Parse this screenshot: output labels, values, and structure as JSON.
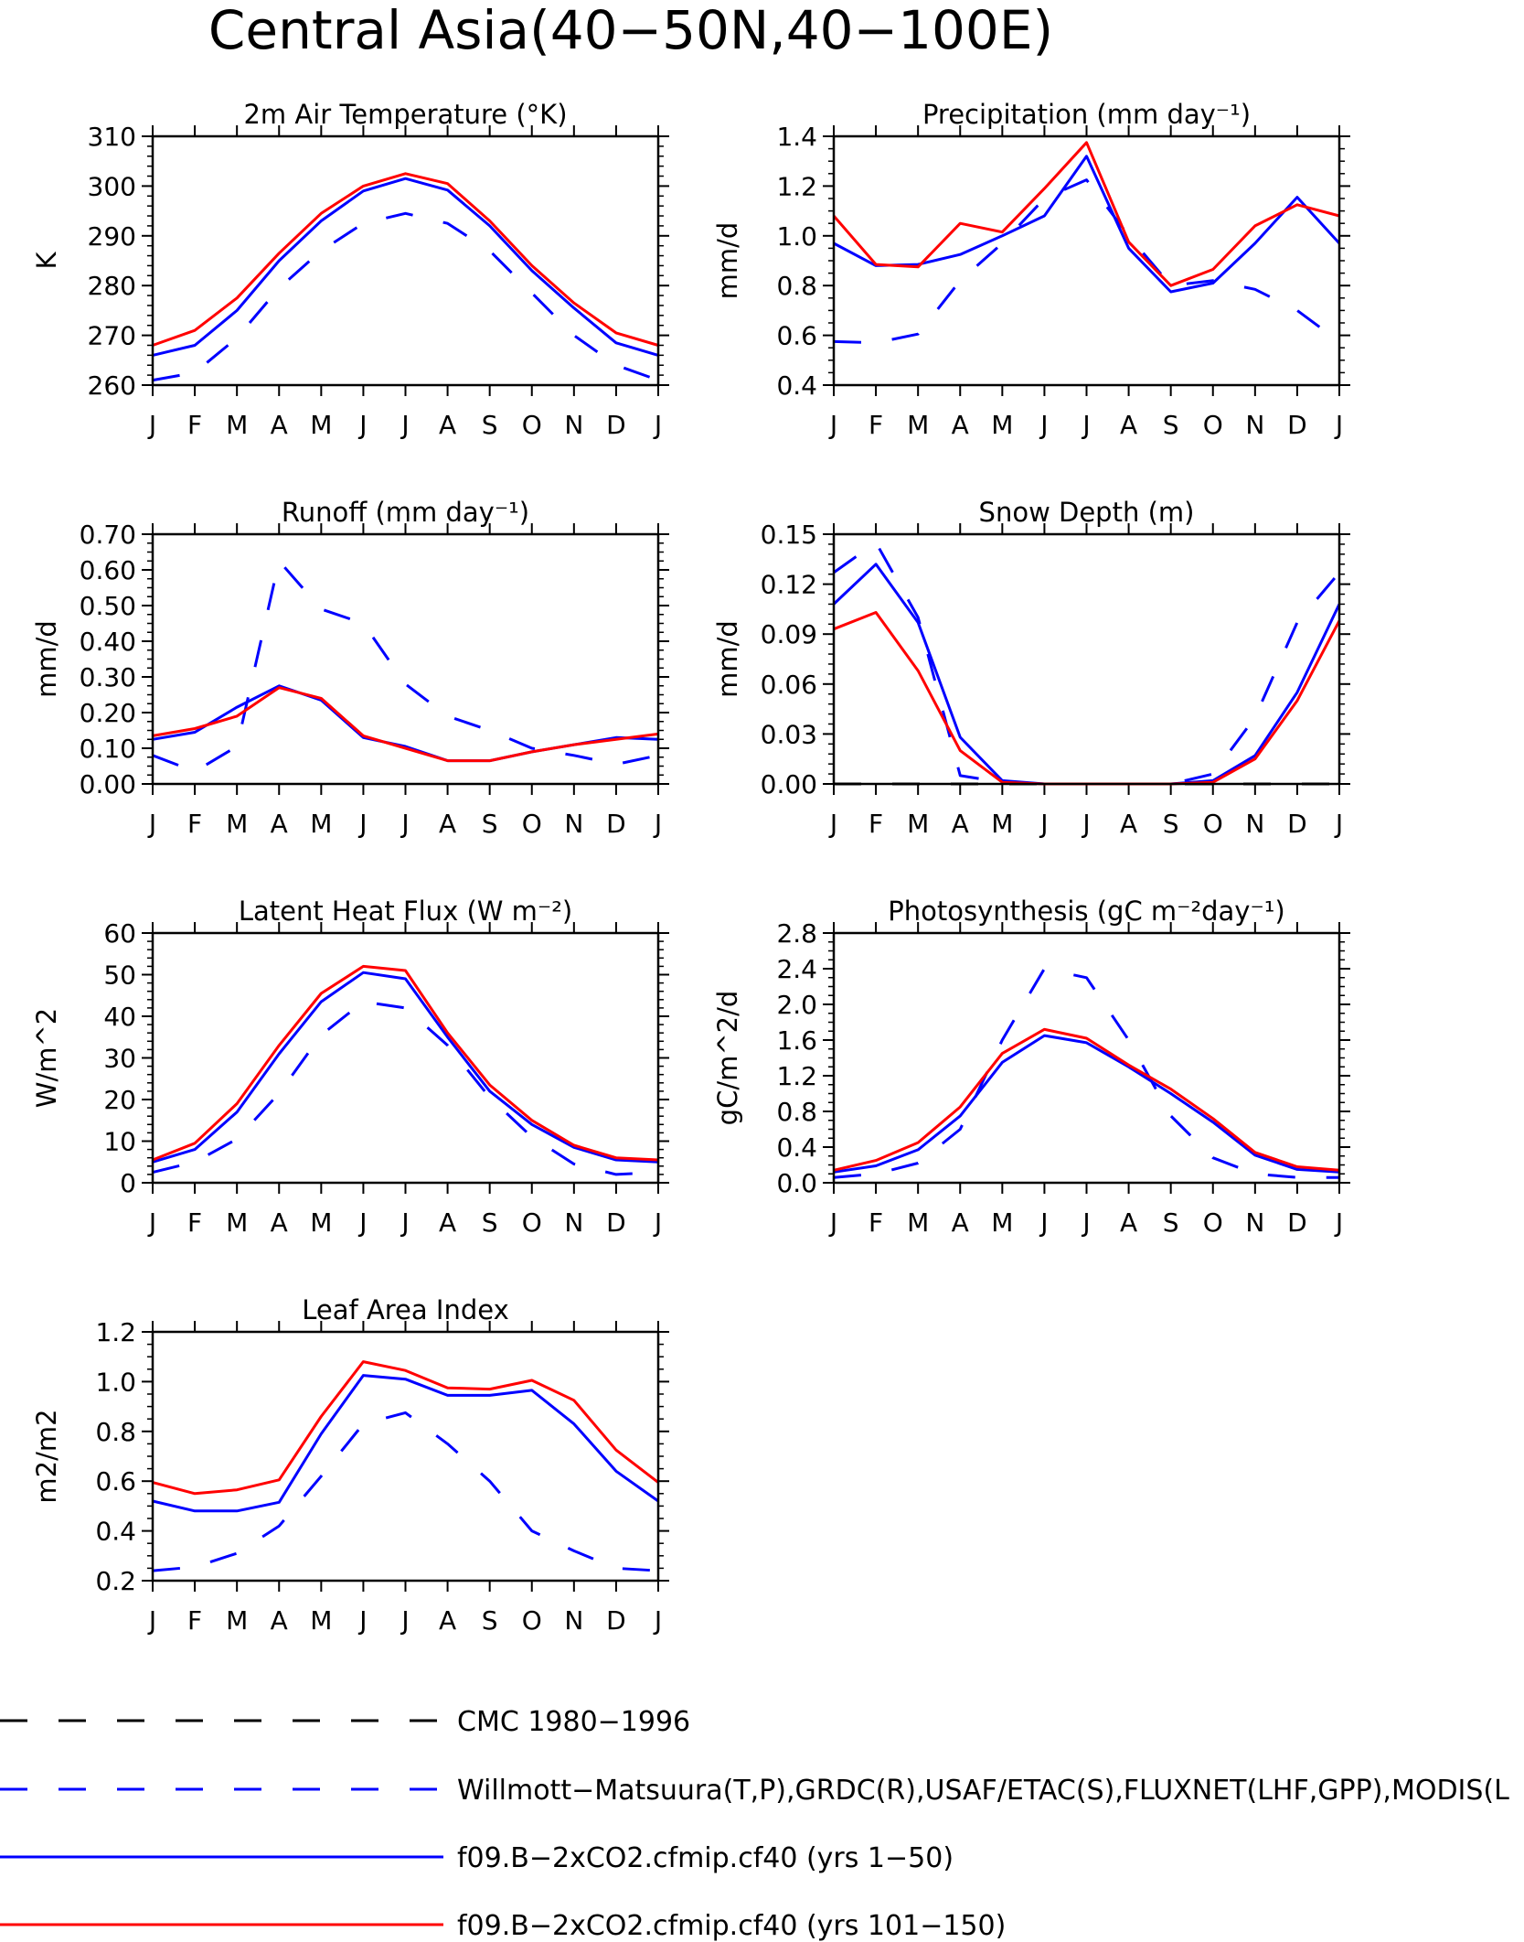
{
  "figure": {
    "title": "Central Asia(40−50N,40−100E)"
  },
  "series_styles": [
    {
      "key": "cmc",
      "color": "#000000",
      "dash": "long"
    },
    {
      "key": "obs",
      "color": "#0000ff",
      "dash": "long"
    },
    {
      "key": "run1",
      "color": "#0000ff",
      "dash": "solid"
    },
    {
      "key": "run2",
      "color": "#ff0000",
      "dash": "solid"
    }
  ],
  "legend": [
    {
      "label": "CMC 1980−1996",
      "color": "#000000",
      "dash": "long"
    },
    {
      "label": "Willmott−Matsuura(T,P),GRDC(R),USAF/ETAC(S),FLUXNET(LHF,GPP),MODIS(L",
      "color": "#0000ff",
      "dash": "long"
    },
    {
      "label": "f09.B−2xCO2.cfmip.cf40 (yrs 1−50)",
      "color": "#0000ff",
      "dash": "solid"
    },
    {
      "label": "f09.B−2xCO2.cfmip.cf40 (yrs 101−150)",
      "color": "#ff0000",
      "dash": "solid"
    }
  ],
  "chart_data": [
    {
      "type": "line",
      "title": "2m Air Temperature (°K)",
      "ylabel": "K",
      "categories": [
        "J",
        "F",
        "M",
        "A",
        "M",
        "J",
        "J",
        "A",
        "S",
        "O",
        "N",
        "D",
        "J"
      ],
      "ylim": [
        260,
        310
      ],
      "yticks": [
        "260",
        "270",
        "280",
        "290",
        "300",
        "310"
      ],
      "yminor": 5,
      "series": [
        {
          "style": "obs",
          "values": [
            261,
            262.5,
            269.5,
            279.5,
            287,
            292.5,
            294.5,
            292.5,
            287,
            278.5,
            270,
            264,
            261
          ]
        },
        {
          "style": "run1",
          "values": [
            266,
            268,
            275,
            285,
            293,
            299,
            301.5,
            299.2,
            292,
            283,
            275.5,
            268.5,
            266
          ]
        },
        {
          "style": "run2",
          "values": [
            268,
            271,
            277.5,
            286.5,
            294.5,
            300,
            302.5,
            300.5,
            293,
            284,
            276.5,
            270.5,
            268
          ]
        }
      ]
    },
    {
      "type": "line",
      "title": "Precipitation (mm day⁻¹)",
      "ylabel": "mm/d",
      "categories": [
        "J",
        "F",
        "M",
        "A",
        "M",
        "J",
        "J",
        "A",
        "S",
        "O",
        "N",
        "D",
        "J"
      ],
      "ylim": [
        0.4,
        1.4
      ],
      "yticks": [
        "0.4",
        "0.6",
        "0.8",
        "1.0",
        "1.2",
        "1.4"
      ],
      "yminor": 4,
      "series": [
        {
          "style": "obs",
          "values": [
            0.575,
            0.57,
            0.605,
            0.82,
            0.97,
            1.15,
            1.225,
            1.0,
            0.8,
            0.82,
            0.785,
            0.7,
            0.575
          ]
        },
        {
          "style": "run1",
          "values": [
            0.97,
            0.88,
            0.885,
            0.925,
            1.0,
            1.08,
            1.32,
            0.95,
            0.775,
            0.81,
            0.97,
            1.155,
            0.97
          ]
        },
        {
          "style": "run2",
          "values": [
            1.08,
            0.885,
            0.875,
            1.05,
            1.015,
            1.19,
            1.375,
            0.975,
            0.8,
            0.865,
            1.04,
            1.125,
            1.08
          ]
        }
      ]
    },
    {
      "type": "line",
      "title": "Runoff (mm day⁻¹)",
      "ylabel": "mm/d",
      "categories": [
        "J",
        "F",
        "M",
        "A",
        "M",
        "J",
        "J",
        "A",
        "S",
        "O",
        "N",
        "D",
        "J"
      ],
      "ylim": [
        0,
        0.7
      ],
      "yticks": [
        "0.00",
        "0.10",
        "0.20",
        "0.30",
        "0.40",
        "0.50",
        "0.60",
        "0.70"
      ],
      "yminor": 4,
      "series": [
        {
          "style": "obs",
          "values": [
            0.08,
            0.035,
            0.105,
            0.625,
            0.49,
            0.45,
            0.28,
            0.19,
            0.15,
            0.1,
            0.08,
            0.055,
            0.08
          ]
        },
        {
          "style": "run1",
          "values": [
            0.125,
            0.145,
            0.215,
            0.275,
            0.235,
            0.13,
            0.105,
            0.065,
            0.065,
            0.09,
            0.11,
            0.13,
            0.125
          ]
        },
        {
          "style": "run2",
          "values": [
            0.135,
            0.155,
            0.19,
            0.27,
            0.24,
            0.135,
            0.1,
            0.065,
            0.065,
            0.09,
            0.11,
            0.125,
            0.14
          ]
        }
      ]
    },
    {
      "type": "line",
      "title": "Snow Depth (m)",
      "ylabel": "mm/d",
      "categories": [
        "J",
        "F",
        "M",
        "A",
        "M",
        "J",
        "J",
        "A",
        "S",
        "O",
        "N",
        "D",
        "J"
      ],
      "ylim": [
        0,
        0.15
      ],
      "yticks": [
        "0.00",
        "0.03",
        "0.06",
        "0.09",
        "0.12",
        "0.15"
      ],
      "yminor": 5,
      "series": [
        {
          "style": "cmc",
          "values": [
            0,
            0,
            0,
            0,
            0,
            0,
            0,
            0,
            0,
            0,
            0,
            0,
            0
          ]
        },
        {
          "style": "obs",
          "values": [
            0.127,
            0.145,
            0.1,
            0.005,
            0.001,
            0,
            0,
            0,
            0,
            0.006,
            0.04,
            0.097,
            0.127
          ]
        },
        {
          "style": "run1",
          "values": [
            0.108,
            0.132,
            0.097,
            0.028,
            0.002,
            0,
            0,
            0,
            0,
            0.002,
            0.017,
            0.055,
            0.108
          ]
        },
        {
          "style": "run2",
          "values": [
            0.093,
            0.103,
            0.068,
            0.02,
            0.001,
            0,
            0,
            0,
            0,
            0.001,
            0.015,
            0.05,
            0.098
          ]
        }
      ]
    },
    {
      "type": "line",
      "title": "Latent Heat Flux (W m⁻²)",
      "ylabel": "W/m^2",
      "categories": [
        "J",
        "F",
        "M",
        "A",
        "M",
        "J",
        "J",
        "A",
        "S",
        "O",
        "N",
        "D",
        "J"
      ],
      "ylim": [
        0,
        60
      ],
      "yticks": [
        "0",
        "10",
        "20",
        "30",
        "40",
        "50",
        "60"
      ],
      "yminor": 5,
      "series": [
        {
          "style": "obs",
          "values": [
            2.5,
            5,
            10.5,
            21.5,
            35.5,
            43.5,
            42,
            33,
            20.5,
            11,
            4.5,
            2,
            2.5
          ]
        },
        {
          "style": "run1",
          "values": [
            5,
            8,
            17,
            31,
            43.5,
            50.5,
            49,
            35,
            22,
            14,
            8.5,
            5.5,
            5
          ]
        },
        {
          "style": "run2",
          "values": [
            5.5,
            9.5,
            19,
            33,
            45.5,
            52,
            51,
            36,
            23.5,
            15,
            9,
            6,
            5.5
          ]
        }
      ]
    },
    {
      "type": "line",
      "title": "Photosynthesis (gC m⁻²day⁻¹)",
      "ylabel": "gC/m^2/d",
      "categories": [
        "J",
        "F",
        "M",
        "A",
        "M",
        "J",
        "J",
        "A",
        "S",
        "O",
        "N",
        "D",
        "J"
      ],
      "ylim": [
        0,
        2.8
      ],
      "yticks": [
        "0.0",
        "0.4",
        "0.8",
        "1.2",
        "1.6",
        "2.0",
        "2.4",
        "2.8"
      ],
      "yminor": 4,
      "series": [
        {
          "style": "obs",
          "values": [
            0.06,
            0.1,
            0.22,
            0.6,
            1.6,
            2.4,
            2.3,
            1.6,
            0.75,
            0.28,
            0.1,
            0.06,
            0.06
          ]
        },
        {
          "style": "run1",
          "values": [
            0.12,
            0.19,
            0.37,
            0.75,
            1.35,
            1.65,
            1.57,
            1.3,
            1.0,
            0.68,
            0.31,
            0.15,
            0.12
          ]
        },
        {
          "style": "run2",
          "values": [
            0.14,
            0.25,
            0.45,
            0.85,
            1.45,
            1.72,
            1.62,
            1.32,
            1.05,
            0.72,
            0.34,
            0.18,
            0.14
          ]
        }
      ]
    },
    {
      "type": "line",
      "title": "Leaf Area Index",
      "ylabel": "m2/m2",
      "categories": [
        "J",
        "F",
        "M",
        "A",
        "M",
        "J",
        "J",
        "A",
        "S",
        "O",
        "N",
        "D",
        "J"
      ],
      "ylim": [
        0.2,
        1.2
      ],
      "yticks": [
        "0.2",
        "0.4",
        "0.6",
        "0.8",
        "1.0",
        "1.2"
      ],
      "yminor": 4,
      "series": [
        {
          "style": "obs",
          "values": [
            0.24,
            0.255,
            0.31,
            0.42,
            0.62,
            0.83,
            0.875,
            0.75,
            0.6,
            0.4,
            0.32,
            0.25,
            0.24
          ]
        },
        {
          "style": "run1",
          "values": [
            0.52,
            0.48,
            0.48,
            0.515,
            0.79,
            1.025,
            1.01,
            0.945,
            0.945,
            0.965,
            0.83,
            0.64,
            0.52
          ]
        },
        {
          "style": "run2",
          "values": [
            0.595,
            0.55,
            0.565,
            0.605,
            0.86,
            1.08,
            1.045,
            0.975,
            0.97,
            1.005,
            0.925,
            0.725,
            0.595
          ]
        }
      ]
    }
  ]
}
